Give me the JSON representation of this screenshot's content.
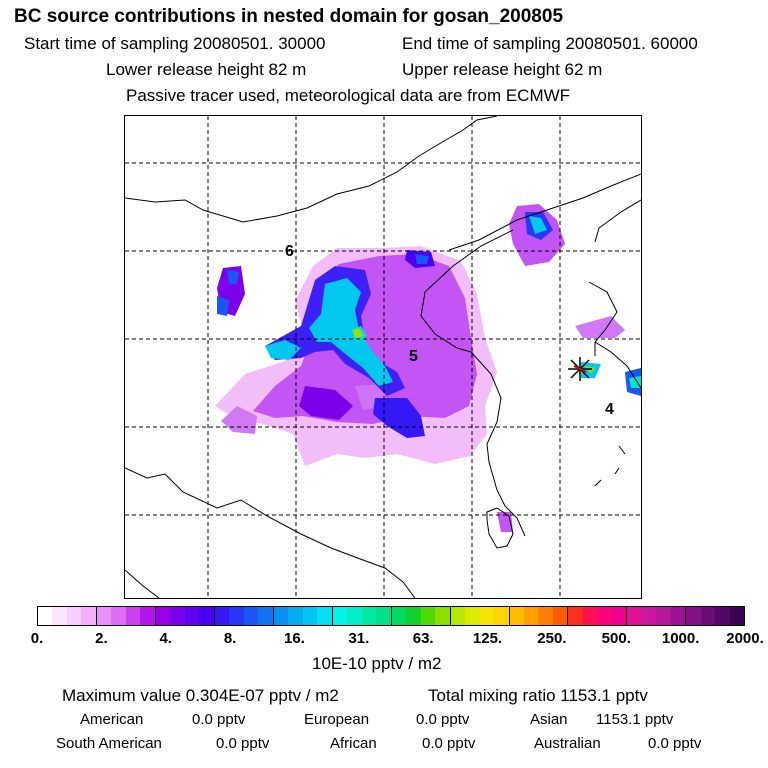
{
  "header": {
    "title": "BC  source contributions in nested domain for gosan_200805",
    "start_time": "Start time of sampling 20080501. 30000",
    "end_time": "End time of sampling 20080501. 60000",
    "lower_release": "Lower release height   82 m",
    "upper_release": "Upper release height   62 m",
    "tracer_note": "Passive tracer used, meteorological data are from ECMWF"
  },
  "map": {
    "region_labels": [
      "6",
      "5",
      "4"
    ],
    "receptor_marker": "star-receptor"
  },
  "colorbar": {
    "ticks": [
      "0.",
      "2.",
      "4.",
      "8.",
      "16.",
      "31.",
      "63.",
      "125.",
      "250.",
      "500.",
      "1000.",
      "2000."
    ],
    "colors": [
      "#ffffff",
      "#fde6fe",
      "#f8ccfd",
      "#f2b0fb",
      "#e98ff8",
      "#dd6df5",
      "#cc40f0",
      "#b414ea",
      "#9a00e6",
      "#7c00ea",
      "#6100ef",
      "#4800f2",
      "#3418f5",
      "#2638f6",
      "#1a56f5",
      "#1272f2",
      "#0a8ef1",
      "#06aaf0",
      "#02c4f0",
      "#00e0f0",
      "#00f5e6",
      "#00eec8",
      "#00e8a8",
      "#00e288",
      "#00da60",
      "#10d030",
      "#50d800",
      "#8ce000",
      "#b6e800",
      "#dcea00",
      "#f4e400",
      "#ffd400",
      "#ffbc00",
      "#ffa000",
      "#ff8000",
      "#ff5c00",
      "#ff3020",
      "#ff1050",
      "#ff0080",
      "#f00090",
      "#e0109a",
      "#cc18a0",
      "#b4189c",
      "#9c1494",
      "#84108a",
      "#6a0c7a",
      "#520866",
      "#3c0450"
    ],
    "unit_label": "10E-10 pptv / m2"
  },
  "summary": {
    "max_value": "Maximum value  0.304E-07 pptv / m2",
    "total_mixing": "Total mixing ratio     1153.1 pptv",
    "american_label": "American",
    "american_value": "0.0 pptv",
    "european_label": "European",
    "european_value": "0.0 pptv",
    "asian_label": "Asian",
    "asian_value": "1153.1 pptv",
    "south_american_label": "South American",
    "south_american_value": "0.0 pptv",
    "african_label": "African",
    "african_value": "0.0 pptv",
    "australian_label": "Australian",
    "australian_value": "0.0 pptv"
  }
}
